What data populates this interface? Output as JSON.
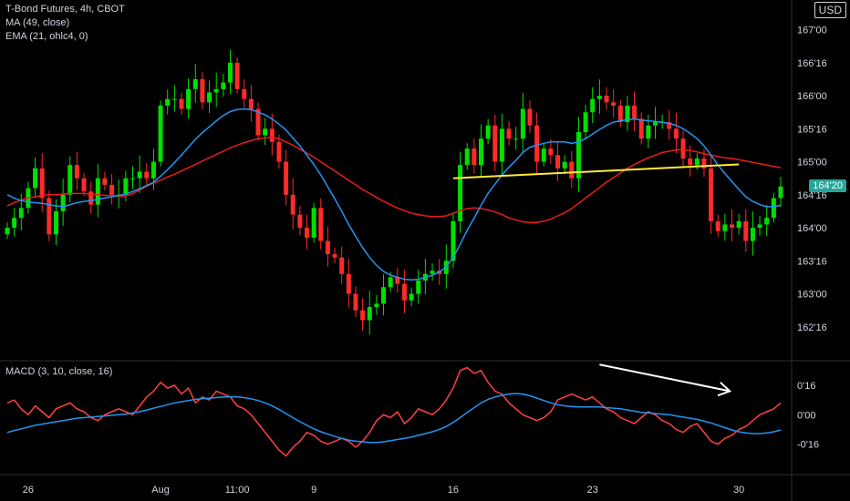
{
  "header": {
    "symbol_line": "T-Bond Futures, 4h, CBOT",
    "ma_line": "MA (49, close)",
    "ema_line": "EMA (21, ohlc4, 0)",
    "currency": "USD",
    "macd_line": "MACD (3, 10, close, 16)",
    "last_price": "164'20"
  },
  "colors": {
    "background": "#000000",
    "up": "#00e000",
    "down": "#ff2a2a",
    "ma": "#e81c1c",
    "ema": "#2196f3",
    "trendline": "#ffeb3b",
    "macd": "#ff4040",
    "signal": "#2196f3",
    "arrow": "#ffffff",
    "last_price_tag": "#26a69a"
  },
  "chart_data": [
    {
      "type": "candlestick",
      "title": "T-Bond Futures, 4h, CBOT",
      "y_tick_labels": [
        "162'16",
        "163'00",
        "163'16",
        "164'00",
        "164'16",
        "165'00",
        "165'16",
        "166'00",
        "166'16",
        "167'00"
      ],
      "y_tick_values": [
        162.5,
        163.0,
        163.5,
        164.0,
        164.5,
        165.0,
        165.5,
        166.0,
        166.5,
        167.0
      ],
      "x_tick_labels": [
        "26",
        "Aug",
        "11:00",
        "9",
        "16",
        "23",
        "30"
      ],
      "x_tick_index": [
        3,
        22,
        33,
        44,
        64,
        84,
        105
      ],
      "ylim": [
        162.0,
        167.45
      ],
      "last_price": 164.625,
      "close": [
        164.0,
        164.15,
        164.3,
        164.6,
        164.9,
        164.45,
        163.9,
        164.25,
        164.5,
        164.95,
        164.75,
        164.55,
        164.35,
        164.75,
        164.65,
        164.5,
        164.5,
        164.75,
        164.75,
        164.85,
        164.75,
        165.0,
        165.85,
        165.95,
        165.95,
        165.8,
        166.1,
        166.25,
        165.9,
        166.05,
        166.1,
        166.2,
        166.5,
        166.1,
        165.95,
        165.8,
        165.4,
        165.5,
        165.3,
        165.0,
        164.5,
        164.2,
        164.0,
        163.85,
        164.3,
        163.8,
        163.6,
        163.55,
        163.3,
        163.0,
        162.75,
        162.6,
        162.8,
        162.85,
        163.1,
        163.25,
        163.15,
        162.9,
        163.0,
        163.2,
        163.3,
        163.35,
        163.3,
        163.5,
        164.1,
        164.95,
        165.2,
        164.95,
        165.35,
        165.55,
        165.0,
        165.5,
        165.35,
        165.35,
        165.8,
        165.55,
        165.0,
        165.2,
        165.1,
        164.9,
        165.0,
        164.75,
        165.45,
        165.75,
        165.95,
        166.0,
        165.9,
        165.85,
        165.6,
        165.85,
        165.65,
        165.35,
        165.55,
        165.6,
        165.6,
        165.5,
        165.35,
        165.05,
        164.95,
        165.05,
        164.9,
        164.1,
        163.95,
        164.05,
        164.0,
        164.1,
        163.8,
        164.0,
        164.05,
        164.15,
        164.45,
        164.625
      ],
      "series": [
        {
          "name": "MA (49, close)",
          "values": [
            164.33,
            164.38,
            164.42,
            164.45,
            164.47,
            164.49,
            164.5,
            164.5,
            164.51,
            164.52,
            164.52,
            164.52,
            164.51,
            164.5,
            164.49,
            164.49,
            164.48,
            164.48,
            164.52,
            164.57,
            164.63,
            164.68,
            164.72,
            164.77,
            164.81,
            164.86,
            164.91,
            164.96,
            165.01,
            165.06,
            165.11,
            165.16,
            165.21,
            165.25,
            165.29,
            165.32,
            165.35,
            165.36,
            165.37,
            165.35,
            165.3,
            165.25,
            165.19,
            165.13,
            165.07,
            165.0,
            164.93,
            164.86,
            164.79,
            164.72,
            164.65,
            164.58,
            164.52,
            164.46,
            164.4,
            164.35,
            164.3,
            164.26,
            164.22,
            164.2,
            164.18,
            164.17,
            164.17,
            164.18,
            164.22,
            164.26,
            164.29,
            164.3,
            164.29,
            164.27,
            164.24,
            164.2,
            164.15,
            164.12,
            164.09,
            164.08,
            164.08,
            164.1,
            164.13,
            164.18,
            164.23,
            164.29,
            164.37,
            164.45,
            164.53,
            164.61,
            164.69,
            164.76,
            164.83,
            164.9,
            164.96,
            165.01,
            165.06,
            165.1,
            165.14,
            165.16,
            165.18,
            165.18,
            165.17,
            165.15,
            165.12,
            165.1,
            165.08,
            165.06,
            165.05,
            165.03,
            165.01,
            164.99,
            164.97,
            164.95,
            164.93,
            164.91
          ]
        },
        {
          "name": "EMA (21, ohlc4, 0)",
          "values": [
            164.5,
            164.45,
            164.41,
            164.39,
            164.38,
            164.37,
            164.35,
            164.33,
            164.32,
            164.35,
            164.38,
            164.4,
            164.41,
            164.43,
            164.45,
            164.47,
            164.49,
            164.51,
            164.55,
            164.59,
            164.64,
            164.69,
            164.78,
            164.88,
            164.99,
            165.1,
            165.22,
            165.34,
            165.44,
            165.53,
            165.62,
            165.7,
            165.76,
            165.79,
            165.8,
            165.79,
            165.75,
            165.71,
            165.65,
            165.57,
            165.48,
            165.36,
            165.24,
            165.1,
            164.96,
            164.8,
            164.62,
            164.44,
            164.25,
            164.05,
            163.87,
            163.7,
            163.55,
            163.43,
            163.34,
            163.28,
            163.25,
            163.22,
            163.21,
            163.22,
            163.25,
            163.28,
            163.33,
            163.41,
            163.55,
            163.75,
            163.96,
            164.15,
            164.34,
            164.52,
            164.66,
            164.8,
            164.92,
            165.02,
            165.14,
            165.22,
            165.25,
            165.28,
            165.3,
            165.3,
            165.3,
            165.28,
            165.3,
            165.35,
            165.42,
            165.49,
            165.55,
            165.6,
            165.62,
            165.64,
            165.65,
            165.63,
            165.62,
            165.61,
            165.6,
            165.58,
            165.55,
            165.5,
            165.43,
            165.35,
            165.24,
            165.1,
            164.95,
            164.82,
            164.7,
            164.58,
            164.47,
            164.4,
            164.35,
            164.32,
            164.32,
            164.34
          ]
        }
      ],
      "trendline": {
        "from_index": 64,
        "from_value": 164.75,
        "to_index": 105,
        "to_value": 164.96
      }
    },
    {
      "type": "line",
      "title": "MACD (3, 10, close, 16)",
      "y_tick_labels": [
        "0'16",
        "0'00",
        "-0'16"
      ],
      "y_tick_values": [
        0.5,
        0.0,
        -0.5
      ],
      "ylim": [
        -1.0,
        0.9
      ],
      "series": [
        {
          "name": "MACD",
          "values": [
            0.2,
            0.25,
            0.1,
            0.0,
            0.15,
            0.05,
            -0.05,
            0.1,
            0.15,
            0.2,
            0.1,
            0.05,
            -0.05,
            -0.1,
            0.0,
            0.05,
            0.1,
            0.05,
            0.0,
            0.15,
            0.3,
            0.4,
            0.55,
            0.45,
            0.5,
            0.35,
            0.45,
            0.2,
            0.3,
            0.25,
            0.4,
            0.35,
            0.3,
            0.15,
            0.1,
            0.0,
            -0.15,
            -0.3,
            -0.45,
            -0.6,
            -0.7,
            -0.55,
            -0.45,
            -0.3,
            -0.35,
            -0.45,
            -0.5,
            -0.45,
            -0.4,
            -0.45,
            -0.55,
            -0.45,
            -0.3,
            -0.1,
            0.0,
            -0.05,
            0.05,
            -0.15,
            -0.05,
            0.1,
            0.05,
            0.0,
            0.1,
            0.25,
            0.45,
            0.75,
            0.8,
            0.7,
            0.75,
            0.55,
            0.4,
            0.35,
            0.2,
            0.1,
            0.0,
            -0.05,
            -0.1,
            -0.05,
            0.05,
            0.25,
            0.3,
            0.35,
            0.3,
            0.25,
            0.3,
            0.2,
            0.1,
            0.05,
            -0.05,
            -0.1,
            -0.15,
            -0.05,
            0.05,
            0.0,
            -0.1,
            -0.15,
            -0.25,
            -0.3,
            -0.2,
            -0.15,
            -0.3,
            -0.45,
            -0.5,
            -0.4,
            -0.35,
            -0.25,
            -0.2,
            -0.1,
            0.0,
            0.05,
            0.1,
            0.2
          ]
        },
        {
          "name": "Signal",
          "values": [
            -0.3,
            -0.27,
            -0.24,
            -0.21,
            -0.18,
            -0.16,
            -0.14,
            -0.12,
            -0.1,
            -0.08,
            -0.06,
            -0.05,
            -0.04,
            -0.03,
            -0.02,
            -0.01,
            0.0,
            0.01,
            0.03,
            0.05,
            0.08,
            0.11,
            0.14,
            0.17,
            0.2,
            0.22,
            0.24,
            0.26,
            0.27,
            0.28,
            0.29,
            0.3,
            0.3,
            0.3,
            0.29,
            0.27,
            0.24,
            0.2,
            0.15,
            0.09,
            0.02,
            -0.05,
            -0.12,
            -0.18,
            -0.24,
            -0.29,
            -0.33,
            -0.37,
            -0.4,
            -0.43,
            -0.45,
            -0.46,
            -0.47,
            -0.47,
            -0.46,
            -0.44,
            -0.42,
            -0.4,
            -0.38,
            -0.35,
            -0.32,
            -0.29,
            -0.25,
            -0.2,
            -0.13,
            -0.05,
            0.04,
            0.12,
            0.2,
            0.26,
            0.3,
            0.33,
            0.35,
            0.36,
            0.35,
            0.32,
            0.28,
            0.24,
            0.2,
            0.17,
            0.15,
            0.14,
            0.13,
            0.13,
            0.13,
            0.13,
            0.12,
            0.11,
            0.1,
            0.08,
            0.06,
            0.04,
            0.03,
            0.02,
            0.01,
            0.0,
            -0.02,
            -0.04,
            -0.06,
            -0.08,
            -0.11,
            -0.14,
            -0.18,
            -0.22,
            -0.26,
            -0.29,
            -0.31,
            -0.32,
            -0.32,
            -0.31,
            -0.29,
            -0.26
          ]
        }
      ],
      "arrow": {
        "from_index": 85,
        "from_value": 0.85,
        "to_index": 105,
        "to_value": 0.4
      }
    }
  ]
}
